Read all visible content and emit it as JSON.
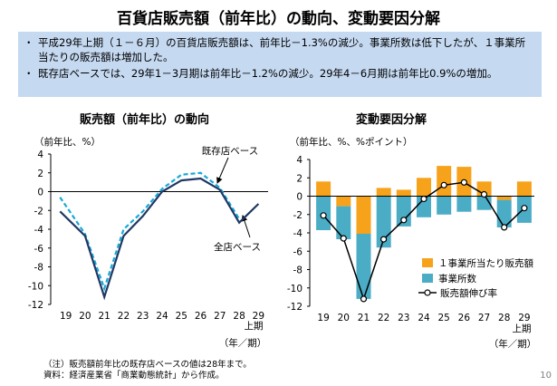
{
  "page_title": "百貨店販売額（前年比）の動向、変動要因分解",
  "summary": [
    "平成29年上期（１－６月）の百貨店販売額は、前年比－1.3%の減少。事業所数は低下したが、１事業所当たりの販売額は増加した。",
    "既存店ベースでは、29年1－3月期は前年比－1.2%の減少。29年4－6月期は前年比0.9%の増加。"
  ],
  "bullet_mark": "・",
  "notes": {
    "note1": "（注）販売額前年比の既存店ベースの値は28年まで。",
    "source": "資料：経済産業省「商業動態統計」から作成。"
  },
  "page_number": "10",
  "chart_data": [
    {
      "type": "line",
      "title": "販売額（前年比）の動向",
      "unit_label": "（前年比、%）",
      "x_tick_labels": [
        "19",
        "20",
        "21",
        "22",
        "23",
        "24",
        "25",
        "26",
        "27",
        "28",
        "29"
      ],
      "x_sublabel": "上期",
      "period_label": "（年／期）",
      "ylim": [
        -12,
        4
      ],
      "y_ticks": [
        4,
        2,
        0,
        -2,
        -4,
        -6,
        -8,
        -10,
        -12
      ],
      "series": [
        {
          "name": "既存店ベース",
          "style": "dashed",
          "color": "#17a8d8",
          "x": [
            18.7,
            20,
            21,
            22,
            23,
            24,
            25,
            26,
            27,
            28
          ],
          "values": [
            -0.6,
            -4.5,
            -10.3,
            -4.0,
            -2.1,
            0.3,
            1.8,
            2.0,
            0.4,
            -2.9
          ]
        },
        {
          "name": "全店ベース",
          "style": "solid",
          "color": "#1f3864",
          "x": [
            18.7,
            20,
            21,
            22,
            23,
            24,
            25,
            26,
            27,
            28,
            29
          ],
          "values": [
            -2.1,
            -4.7,
            -11.2,
            -4.7,
            -2.6,
            0.0,
            1.2,
            1.4,
            0.2,
            -3.3,
            -1.3
          ]
        }
      ],
      "annotations": [
        {
          "text": "既存店ベース",
          "target": "既存店ベース"
        },
        {
          "text": "全店ベース",
          "target": "全店ベース"
        }
      ]
    },
    {
      "type": "bar+line",
      "title": "変動要因分解",
      "unit_label": "（前年比、%、%ポイント）",
      "categories": [
        "19",
        "20",
        "21",
        "22",
        "23",
        "24",
        "25",
        "26",
        "27",
        "28",
        "29"
      ],
      "x_sublabel": "上期",
      "period_label": "（年／期）",
      "ylim": [
        -12,
        4
      ],
      "y_ticks": [
        4,
        2,
        0,
        -2,
        -4,
        -6,
        -8,
        -10,
        -12
      ],
      "series": [
        {
          "name": "１事業所当たり販売額",
          "type": "bar",
          "color": "#f7a21b",
          "values": [
            1.6,
            -1.1,
            -4.1,
            0.9,
            0.7,
            2.0,
            3.3,
            3.2,
            1.6,
            -0.4,
            1.6
          ]
        },
        {
          "name": "事業所数",
          "type": "bar",
          "color": "#4bacc6",
          "values": [
            -3.7,
            -3.6,
            -7.1,
            -5.6,
            -3.3,
            -2.3,
            -2.0,
            -1.7,
            -1.5,
            -3.0,
            -2.9
          ]
        },
        {
          "name": "販売額伸び率",
          "type": "line",
          "color": "#000000",
          "values": [
            -2.1,
            -4.6,
            -11.2,
            -4.7,
            -2.6,
            -0.3,
            1.2,
            1.5,
            0.2,
            -3.4,
            -1.3
          ]
        }
      ]
    }
  ]
}
